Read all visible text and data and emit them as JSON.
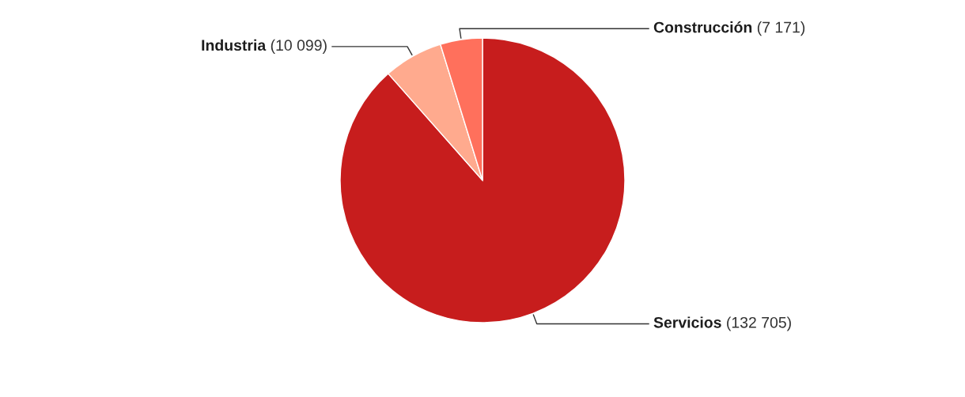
{
  "chart_data": {
    "type": "pie",
    "categories": [
      "Servicios",
      "Industria",
      "Construcción"
    ],
    "values": [
      132705,
      10099,
      7171
    ],
    "value_labels": [
      "(132 705)",
      "(10 099)",
      "(7 171)"
    ],
    "colors": [
      "#c71d1d",
      "#ffaa8e",
      "#ff705c"
    ]
  }
}
